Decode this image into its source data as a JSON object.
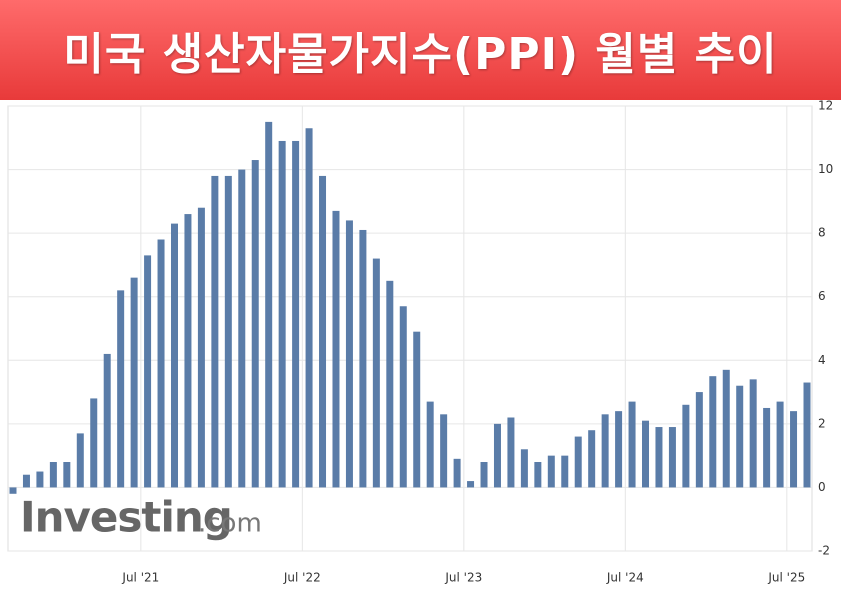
{
  "chart_data": {
    "type": "bar",
    "title": "미국 생산자물가지수(PPI) 월별 추이",
    "categories": [
      null,
      null,
      null,
      null,
      null,
      null,
      null,
      null,
      null,
      "Jul '21",
      null,
      null,
      null,
      null,
      null,
      null,
      null,
      null,
      null,
      null,
      null,
      "Jul '22",
      null,
      null,
      null,
      null,
      null,
      null,
      null,
      null,
      null,
      null,
      null,
      "Jul '23",
      null,
      null,
      null,
      null,
      null,
      null,
      null,
      null,
      null,
      null,
      null,
      "Jul '24",
      null,
      null,
      null,
      null,
      null,
      null,
      null,
      null,
      null,
      null,
      null,
      "Jul '25",
      null,
      null
    ],
    "values": [
      -0.2,
      0.4,
      0.5,
      0.8,
      0.8,
      1.7,
      2.8,
      4.2,
      6.2,
      6.6,
      7.3,
      7.8,
      8.3,
      8.6,
      8.8,
      9.8,
      9.8,
      10.0,
      10.3,
      11.5,
      10.9,
      10.9,
      11.3,
      9.8,
      8.7,
      8.4,
      8.1,
      7.2,
      6.5,
      5.7,
      4.9,
      2.7,
      2.3,
      0.9,
      0.2,
      0.8,
      2.0,
      2.2,
      1.2,
      0.8,
      1.0,
      1.0,
      1.6,
      1.8,
      2.3,
      2.4,
      2.7,
      2.1,
      1.9,
      1.9,
      2.6,
      3.0,
      3.5,
      3.7,
      3.2,
      3.4,
      2.5,
      2.7,
      2.4,
      3.3
    ],
    "color": "#5a7ca8",
    "ylim": [
      -2,
      12
    ],
    "yticks": [
      -2,
      0,
      2,
      4,
      6,
      8,
      10,
      12
    ],
    "grid": true,
    "logo": "Investing",
    "logo_suffix": ".com"
  }
}
